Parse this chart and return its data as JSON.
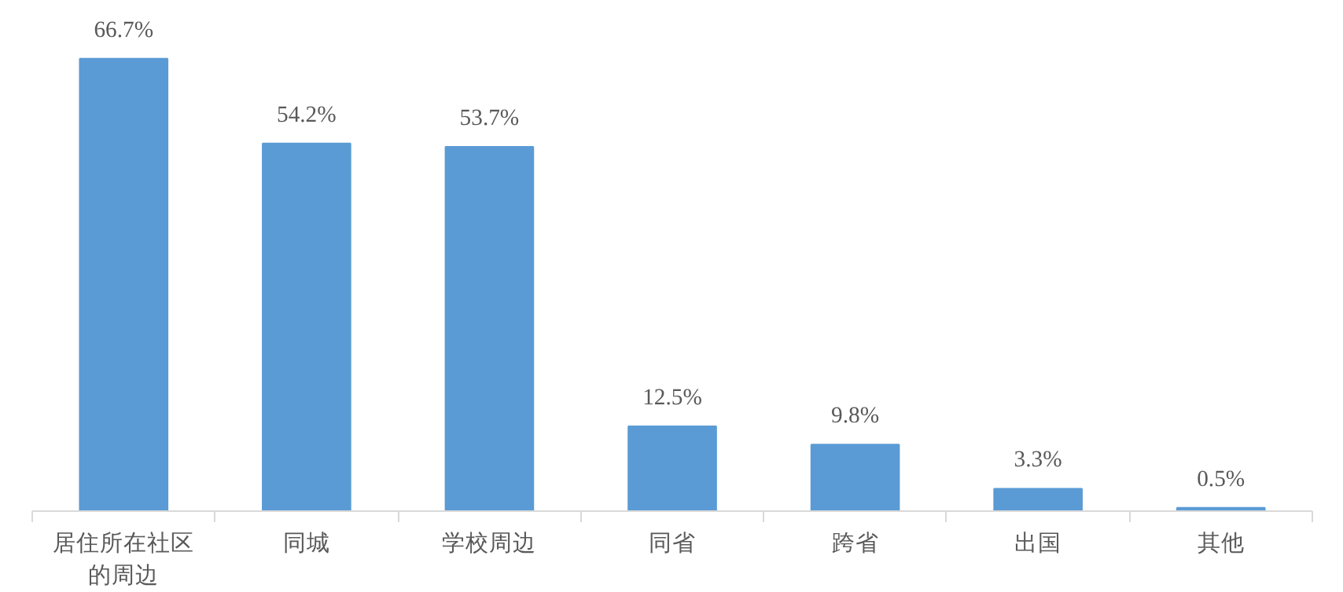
{
  "chart_data": {
    "type": "bar",
    "categories": [
      "居住所在社区的周边",
      "同城",
      "学校周边",
      "同省",
      "跨省",
      "出国",
      "其他"
    ],
    "values": [
      66.7,
      54.2,
      53.7,
      12.5,
      9.8,
      3.3,
      0.5
    ],
    "value_labels": [
      "66.7%",
      "54.2%",
      "53.7%",
      "12.5%",
      "9.8%",
      "3.3%",
      "0.5%"
    ],
    "color": "#5b9bd5",
    "grid": false
  }
}
